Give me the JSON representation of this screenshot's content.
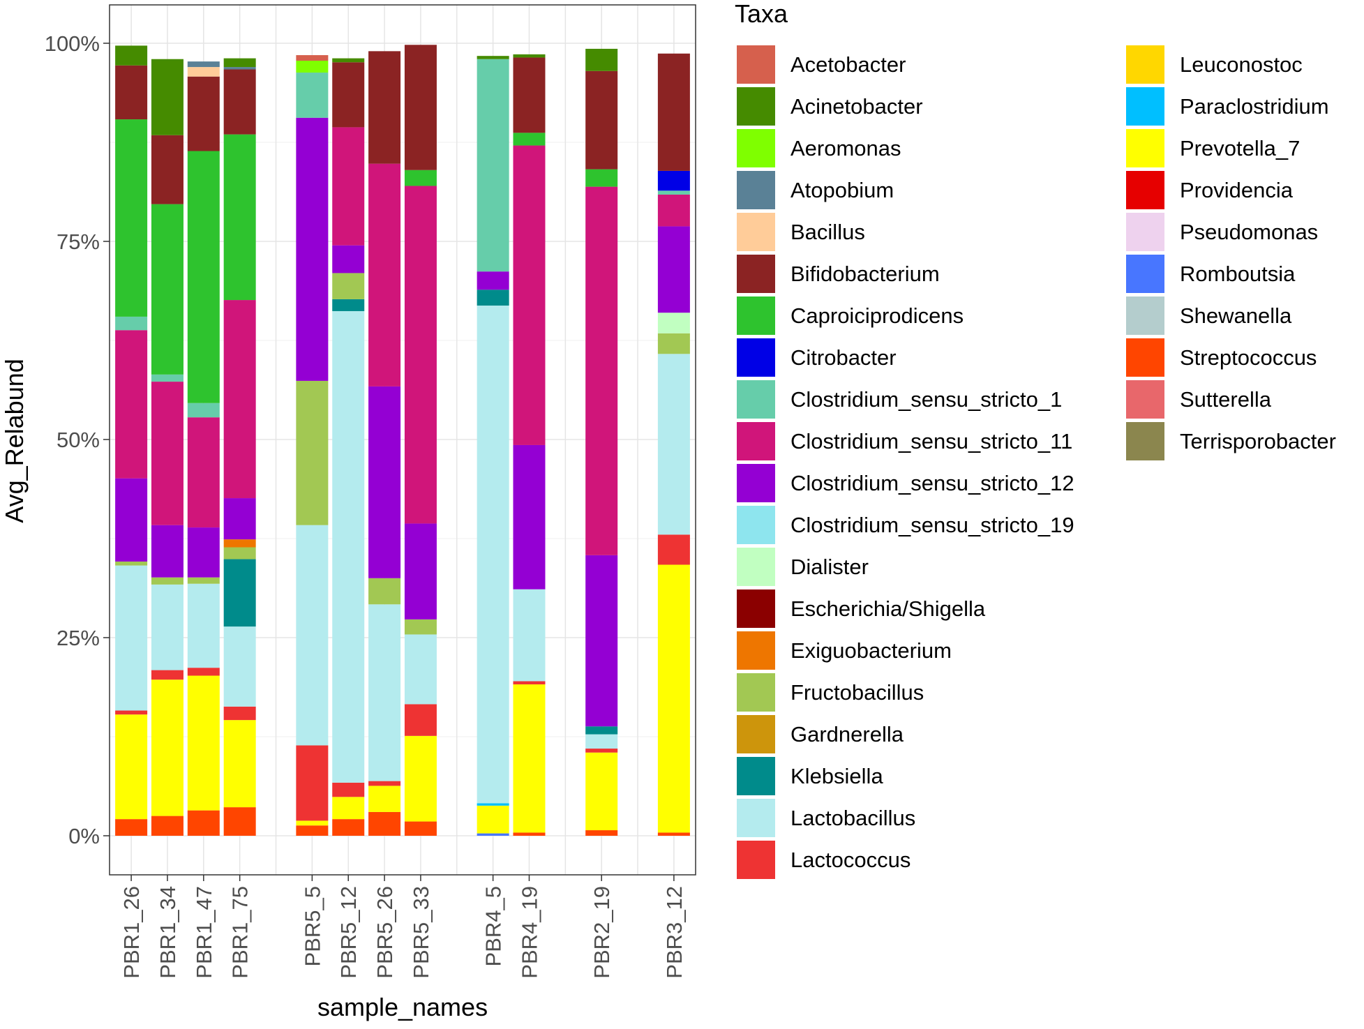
{
  "chart_data": {
    "type": "bar",
    "stacked": true,
    "title": "",
    "xlabel": "sample_names",
    "ylabel": "Avg_Relabund",
    "ylim": [
      0,
      100
    ],
    "y_ticks": [
      0,
      25,
      50,
      75,
      100
    ],
    "y_tick_labels": [
      "0%",
      "25%",
      "50%",
      "75%",
      "100%"
    ],
    "grid": true,
    "legend_title": "Taxa",
    "legend_position": "right",
    "categories": [
      "PBR1_26",
      "PBR1_34",
      "PBR1_47",
      "PBR1_75",
      "PBR5_5",
      "PBR5_12",
      "PBR5_26",
      "PBR5_33",
      "PBR4_5",
      "PBR4_19",
      "PBR2_19",
      "PBR3_12"
    ],
    "x_positions": [
      1,
      2,
      3,
      4,
      6,
      7,
      8,
      9,
      11,
      12,
      14,
      16
    ],
    "x_range": [
      0.4,
      16.6
    ],
    "series": [
      {
        "name": "Acetobacter",
        "color": "#D6604D",
        "values": [
          0,
          0,
          0,
          0,
          0.7,
          0,
          0,
          0,
          0,
          0,
          0,
          0
        ]
      },
      {
        "name": "Acinetobacter",
        "color": "#458B00",
        "values": [
          2.5,
          9.6,
          0,
          1.1,
          0,
          0.5,
          0,
          0,
          0.4,
          0.4,
          2.8,
          0
        ]
      },
      {
        "name": "Aeromonas",
        "color": "#7FFF00",
        "values": [
          0,
          0,
          0,
          0,
          1.5,
          0,
          0,
          0,
          0,
          0,
          0,
          0
        ]
      },
      {
        "name": "Atopobium",
        "color": "#5A8196",
        "values": [
          0,
          0,
          0.7,
          0.3,
          0,
          0,
          0,
          0,
          0,
          0,
          0,
          0
        ]
      },
      {
        "name": "Bacillus",
        "color": "#FFCC99",
        "values": [
          0,
          0,
          1.2,
          0,
          0,
          0,
          0,
          0,
          0,
          0,
          0,
          0
        ]
      },
      {
        "name": "Bifidobacterium",
        "color": "#8B2323",
        "values": [
          6.8,
          8.7,
          9.4,
          8.2,
          0,
          8.2,
          14.2,
          15.8,
          0,
          9.5,
          12.4,
          14.8
        ]
      },
      {
        "name": "Caproiciprodicens",
        "color": "#2EC32E",
        "values": [
          24.9,
          21.5,
          31.8,
          20.9,
          0,
          0,
          0,
          2.0,
          0,
          1.6,
          2.2,
          0
        ]
      },
      {
        "name": "Citrobacter",
        "color": "#0000E6",
        "values": [
          0,
          0,
          0,
          0,
          0,
          0,
          0,
          0,
          0,
          0,
          0,
          2.5
        ]
      },
      {
        "name": "Clostridium_sensu_stricto_1",
        "color": "#66CDAA",
        "values": [
          1.7,
          0.9,
          1.8,
          0,
          5.7,
          0,
          0,
          0,
          26.8,
          0,
          0,
          0.5
        ]
      },
      {
        "name": "Clostridium_sensu_stricto_11",
        "color": "#D0157A",
        "values": [
          18.7,
          18.1,
          13.9,
          25.0,
          0,
          14.9,
          28.1,
          42.6,
          0,
          37.8,
          46.5,
          4.0
        ]
      },
      {
        "name": "Clostridium_sensu_stricto_12",
        "color": "#9400D3",
        "values": [
          10.5,
          6.6,
          6.3,
          5.2,
          33.2,
          3.5,
          24.2,
          12.1,
          2.3,
          18.2,
          21.6,
          10.9
        ]
      },
      {
        "name": "Clostridium_sensu_stricto_19",
        "color": "#8EE5EE",
        "values": [
          0,
          0,
          0,
          0,
          0,
          0,
          0,
          0,
          0,
          0,
          0,
          0
        ]
      },
      {
        "name": "Dialister",
        "color": "#C1FFC1",
        "values": [
          0,
          0,
          0,
          0,
          0,
          0,
          0,
          0,
          0,
          0,
          0,
          2.6
        ]
      },
      {
        "name": "Escherichia/Shigella",
        "color": "#8B0000",
        "values": [
          0,
          0,
          0,
          0,
          0,
          0,
          0,
          0,
          0,
          0,
          0,
          0
        ]
      },
      {
        "name": "Exiguobacterium",
        "color": "#EE7600",
        "values": [
          0,
          0,
          0,
          1.0,
          0,
          0,
          0,
          0,
          0,
          0,
          0,
          0
        ]
      },
      {
        "name": "Fructobacillus",
        "color": "#A2C853",
        "values": [
          0.5,
          0.9,
          0.8,
          1.5,
          18.2,
          3.3,
          3.3,
          1.9,
          0,
          0,
          0,
          2.6
        ]
      },
      {
        "name": "Gardnerella",
        "color": "#CD950C",
        "values": [
          0,
          0,
          0,
          0,
          0,
          0,
          0,
          0,
          0,
          0,
          0,
          0
        ]
      },
      {
        "name": "Klebsiella",
        "color": "#008B8B",
        "values": [
          0,
          0,
          0,
          8.5,
          0,
          1.5,
          0,
          0,
          2.0,
          0,
          1.0,
          0
        ]
      },
      {
        "name": "Lactobacillus",
        "color": "#B4EBEE",
        "values": [
          18.3,
          10.8,
          10.6,
          10.1,
          27.8,
          59.5,
          22.3,
          8.8,
          62.8,
          11.6,
          1.8,
          22.8
        ]
      },
      {
        "name": "Lactococcus",
        "color": "#EE3333",
        "values": [
          0.5,
          1.2,
          1.0,
          1.7,
          9.5,
          1.8,
          0.6,
          4.0,
          0,
          0.4,
          0.5,
          3.8
        ]
      },
      {
        "name": "Leuconostoc",
        "color": "#FFD700",
        "values": [
          0,
          0,
          0,
          0,
          0,
          0,
          0,
          0,
          0,
          0,
          0,
          0
        ]
      },
      {
        "name": "Paraclostridium",
        "color": "#00BFFF",
        "values": [
          0,
          0,
          0,
          0,
          0,
          0,
          0,
          0,
          0.3,
          0,
          0,
          0
        ]
      },
      {
        "name": "Prevotella_7",
        "color": "#FFFF00",
        "values": [
          13.2,
          17.2,
          17.0,
          11.0,
          0.6,
          2.8,
          3.3,
          10.8,
          3.5,
          18.7,
          9.8,
          33.8
        ]
      },
      {
        "name": "Providencia",
        "color": "#E60000",
        "values": [
          0,
          0,
          0,
          0,
          0,
          0,
          0,
          0,
          0,
          0,
          0,
          0
        ]
      },
      {
        "name": "Pseudomonas",
        "color": "#EED2EE",
        "values": [
          0,
          0,
          0,
          0,
          0,
          0,
          0,
          0,
          0,
          0,
          0,
          0
        ]
      },
      {
        "name": "Romboutsia",
        "color": "#4876FF",
        "values": [
          0,
          0,
          0,
          0,
          0,
          0,
          0,
          0,
          0.3,
          0,
          0,
          0
        ]
      },
      {
        "name": "Shewanella",
        "color": "#B4CDCD",
        "values": [
          0,
          0,
          0,
          0,
          0,
          0,
          0,
          0,
          0,
          0,
          0,
          0
        ]
      },
      {
        "name": "Streptococcus",
        "color": "#FF4500",
        "values": [
          2.1,
          2.5,
          3.2,
          3.6,
          1.3,
          2.1,
          3.0,
          1.8,
          0,
          0.4,
          0.7,
          0.4
        ]
      },
      {
        "name": "Sutterella",
        "color": "#E8676B",
        "values": [
          0,
          0,
          0,
          0,
          0,
          0,
          0,
          0,
          0,
          0,
          0,
          0
        ]
      },
      {
        "name": "Terrisporobacter",
        "color": "#8B864E",
        "values": [
          0,
          0,
          0,
          0,
          0,
          0,
          0,
          0,
          0,
          0,
          0,
          0
        ]
      }
    ],
    "legend_entries": [
      "Acetobacter",
      "Acinetobacter",
      "Aeromonas",
      "Atopobium",
      "Bacillus",
      "Bifidobacterium",
      "Caproiciprodicens",
      "Citrobacter",
      "Clostridium_sensu_stricto_1",
      "Clostridium_sensu_stricto_11",
      "Clostridium_sensu_stricto_12",
      "Clostridium_sensu_stricto_19",
      "Dialister",
      "Escherichia/Shigella",
      "Exiguobacterium",
      "Fructobacillus",
      "Gardnerella",
      "Klebsiella",
      "Lactobacillus",
      "Lactococcus",
      "Leuconostoc",
      "Paraclostridium",
      "Prevotella_7",
      "Providencia",
      "Pseudomonas",
      "Romboutsia",
      "Shewanella",
      "Streptococcus",
      "Sutterella",
      "Terrisporobacter"
    ]
  }
}
